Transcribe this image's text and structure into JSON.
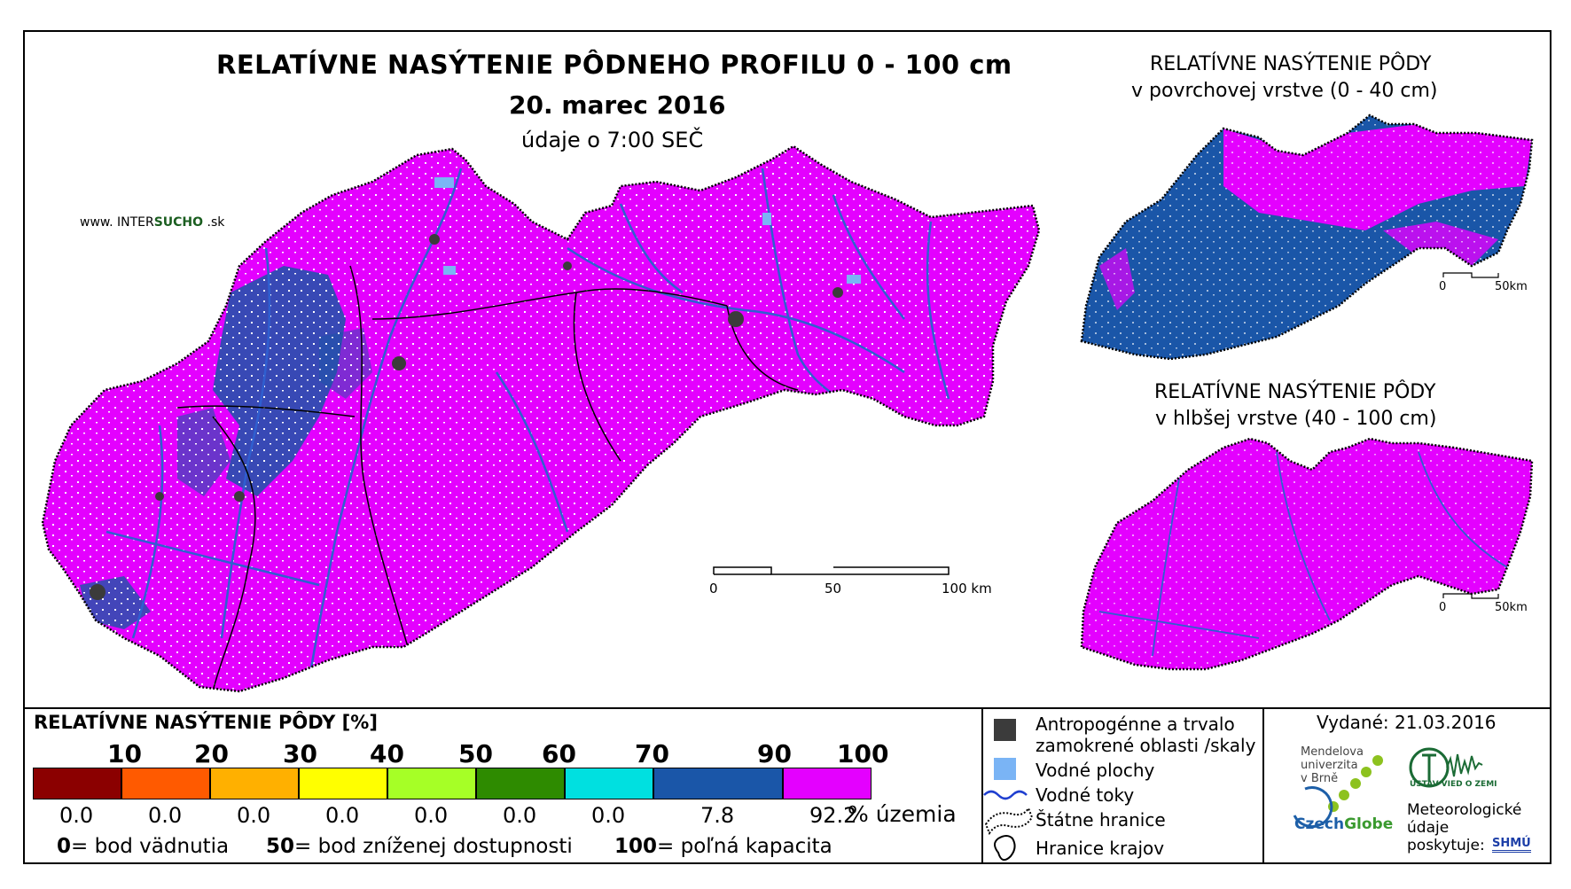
{
  "title": "RELATÍVNE NASÝTENIE PÔDNEHO PROFILU 0 - 100 cm",
  "date": "20. marec 2016",
  "time_note": "údaje o 7:00 SEČ",
  "brand": {
    "prefix": "www. INTER",
    "highlight": "SUCHO",
    "suffix": " .sk"
  },
  "colors": {
    "magenta": "#e400ff",
    "blue": "#1a56a8",
    "boundary": "#000000",
    "river": "#2f5fd0",
    "urban": "#3b3b3b"
  },
  "main_scale": {
    "labels": [
      "0",
      "50",
      "100 km"
    ]
  },
  "inset_top": {
    "title_line1": "RELATÍVNE NASÝTENIE PÔDY",
    "title_line2": "v povrchovej vrstve (0 - 40 cm)",
    "scale": [
      "0",
      "50km"
    ]
  },
  "inset_bottom": {
    "title_line1": "RELATÍVNE NASÝTENIE PÔDY",
    "title_line2": "v hlbšej vrstve (40 - 100 cm)",
    "scale": [
      "0",
      "50km"
    ]
  },
  "legend": {
    "title": "RELATÍVNE NASÝTENIE PÔDY [%]",
    "scale_labels": [
      "10",
      "20",
      "30",
      "40",
      "50",
      "60",
      "70",
      "90",
      "100"
    ],
    "classes": [
      {
        "color": "#8b0000",
        "share": "0.0"
      },
      {
        "color": "#ff5a00",
        "share": "0.0"
      },
      {
        "color": "#ffb000",
        "share": "0.0"
      },
      {
        "color": "#ffff00",
        "share": "0.0"
      },
      {
        "color": "#a6ff26",
        "share": "0.0"
      },
      {
        "color": "#2e8b00",
        "share": "0.0"
      },
      {
        "color": "#00e0e0",
        "share": "0.0"
      },
      {
        "color": "#1a56a8",
        "share": "7.8"
      },
      {
        "color": "#e400ff",
        "share": "92.2"
      }
    ],
    "share_unit": "% územia",
    "definitions": [
      {
        "value": "0",
        "text": "= bod vädnutia"
      },
      {
        "value": "50",
        "text": "= bod zníženej dostupnosti"
      },
      {
        "value": "100",
        "text": "= poľná kapacita"
      }
    ]
  },
  "map_key": {
    "urban_line1": "Antropogénne a trvalo",
    "urban_line2": "zamokrené oblasti /skaly",
    "water_bodies": "Vodné plochy",
    "rivers": "Vodné toky",
    "state_border": "Štátne hranice",
    "region_border": "Hranice krajov"
  },
  "issued": "Vydané: 21.03.2016",
  "partners": {
    "mendel_line1": "Mendelova",
    "mendel_line2": "univerzita",
    "mendel_line3": "v Brně",
    "czechglobe_a": "Czech",
    "czechglobe_b": "Globe",
    "ustav": "ÚSTAV VIED O ZEMI",
    "meteo_line1": "Meteorologické",
    "meteo_line2": "údaje",
    "meteo_line3": "poskytuje:",
    "shmu": "SHMÚ"
  }
}
